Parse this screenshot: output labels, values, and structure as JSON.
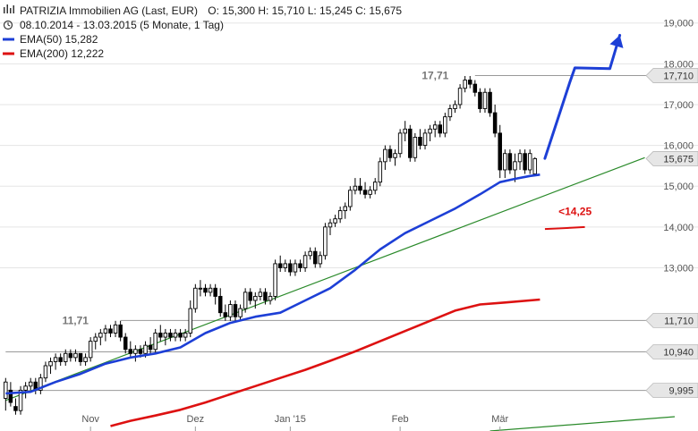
{
  "header": {
    "title": "PATRIZIA Immobilien AG (Last, EUR)",
    "ohlc": "O: 15,300  H: 15,710  L: 15,245  C: 15,675",
    "period": "08.10.2014 - 13.03.2015 (5 Monate, 1 Tag)",
    "ema50_label": "EMA(50)  15,282",
    "ema200_label": "EMA(200)  12,222"
  },
  "colors": {
    "ema50": "#1d3fd6",
    "ema200": "#dd1111",
    "trend": "#2a8a2a",
    "candle": "#000000",
    "tag_bg": "#e6e6e6",
    "grid": "#e5e5e5",
    "hline": "#999999",
    "projection": "#1d3fd6",
    "support_mark": "#dd1111"
  },
  "chart_data": {
    "type": "candlestick",
    "ylim": [
      9.0,
      19.3
    ],
    "y_ticks": [
      {
        "v": 13.0,
        "label": "13,000"
      },
      {
        "v": 14.0,
        "label": "14,000"
      },
      {
        "v": 15.0,
        "label": "15,000"
      },
      {
        "v": 16.0,
        "label": "16,000"
      },
      {
        "v": 17.0,
        "label": "17,000"
      },
      {
        "v": 18.0,
        "label": "18,000"
      },
      {
        "v": 19.0,
        "label": "19,000"
      }
    ],
    "x_ticks": [
      {
        "i": 17,
        "label": "Nov"
      },
      {
        "i": 38,
        "label": "Dez"
      },
      {
        "i": 57,
        "label": "Jan '15"
      },
      {
        "i": 79,
        "label": "Feb"
      },
      {
        "i": 99,
        "label": "Mär"
      }
    ],
    "price_tags": [
      {
        "v": 17.71,
        "label": "17,710"
      },
      {
        "v": 15.675,
        "label": "15,675"
      },
      {
        "v": 11.71,
        "label": "11,710"
      },
      {
        "v": 10.94,
        "label": "10,940"
      },
      {
        "v": 9.995,
        "label": "9,995"
      }
    ],
    "horizontal_lines": [
      {
        "v": 17.71,
        "from_i": 94
      },
      {
        "v": 11.71,
        "from_i": 23
      },
      {
        "v": 10.94,
        "from_i": 0
      },
      {
        "v": 9.995,
        "from_i": 0
      }
    ],
    "annotations": [
      {
        "text": "17,71",
        "i": 88,
        "v": 17.71
      },
      {
        "text": "11,71",
        "i": 16,
        "v": 11.71
      },
      {
        "text": "<14,25",
        "i": 110,
        "v": 14.25
      }
    ],
    "candles": [
      [
        9.8,
        10.3,
        9.5,
        10.2
      ],
      [
        10.0,
        10.2,
        9.6,
        9.7
      ],
      [
        9.6,
        9.8,
        9.4,
        9.5
      ],
      [
        9.5,
        10.1,
        9.4,
        10.0
      ],
      [
        10.0,
        10.2,
        9.8,
        10.1
      ],
      [
        10.1,
        10.3,
        10.0,
        10.2
      ],
      [
        10.2,
        10.3,
        9.9,
        10.0
      ],
      [
        10.0,
        10.4,
        9.9,
        10.3
      ],
      [
        10.3,
        10.7,
        10.2,
        10.6
      ],
      [
        10.6,
        10.8,
        10.4,
        10.7
      ],
      [
        10.7,
        10.9,
        10.5,
        10.8
      ],
      [
        10.8,
        10.9,
        10.6,
        10.7
      ],
      [
        10.7,
        11.0,
        10.6,
        10.9
      ],
      [
        10.9,
        11.0,
        10.7,
        10.8
      ],
      [
        10.8,
        11.0,
        10.7,
        10.9
      ],
      [
        10.9,
        10.9,
        10.6,
        10.7
      ],
      [
        10.7,
        10.9,
        10.6,
        10.8
      ],
      [
        10.8,
        11.3,
        10.7,
        11.2
      ],
      [
        11.2,
        11.4,
        11.0,
        11.3
      ],
      [
        11.3,
        11.5,
        11.1,
        11.4
      ],
      [
        11.4,
        11.6,
        11.2,
        11.5
      ],
      [
        11.5,
        11.6,
        11.3,
        11.4
      ],
      [
        11.4,
        11.7,
        11.3,
        11.6
      ],
      [
        11.6,
        11.7,
        11.2,
        11.3
      ],
      [
        11.3,
        11.4,
        10.9,
        11.0
      ],
      [
        11.0,
        11.2,
        10.8,
        10.9
      ],
      [
        10.9,
        11.1,
        10.7,
        11.0
      ],
      [
        11.0,
        11.1,
        10.8,
        10.9
      ],
      [
        10.9,
        11.2,
        10.8,
        11.1
      ],
      [
        11.1,
        11.3,
        10.9,
        11.0
      ],
      [
        11.0,
        11.5,
        10.9,
        11.4
      ],
      [
        11.4,
        11.6,
        11.2,
        11.3
      ],
      [
        11.3,
        11.5,
        11.1,
        11.4
      ],
      [
        11.4,
        11.5,
        11.2,
        11.3
      ],
      [
        11.3,
        11.5,
        11.2,
        11.4
      ],
      [
        11.4,
        11.5,
        11.2,
        11.3
      ],
      [
        11.3,
        11.5,
        11.2,
        11.4
      ],
      [
        11.4,
        12.2,
        11.3,
        12.0
      ],
      [
        12.0,
        12.6,
        11.9,
        12.5
      ],
      [
        12.5,
        12.7,
        12.3,
        12.5
      ],
      [
        12.5,
        12.6,
        12.3,
        12.4
      ],
      [
        12.4,
        12.6,
        12.3,
        12.5
      ],
      [
        12.5,
        12.6,
        12.1,
        12.3
      ],
      [
        12.3,
        12.5,
        11.8,
        11.9
      ],
      [
        11.9,
        12.1,
        11.7,
        11.8
      ],
      [
        11.8,
        12.2,
        11.7,
        12.1
      ],
      [
        12.1,
        12.2,
        11.7,
        11.8
      ],
      [
        11.8,
        12.1,
        11.7,
        12.0
      ],
      [
        12.0,
        12.5,
        11.9,
        12.4
      ],
      [
        12.4,
        12.5,
        12.1,
        12.2
      ],
      [
        12.2,
        12.4,
        12.0,
        12.3
      ],
      [
        12.3,
        12.5,
        12.2,
        12.4
      ],
      [
        12.4,
        12.5,
        12.1,
        12.2
      ],
      [
        12.2,
        12.4,
        12.1,
        12.3
      ],
      [
        12.3,
        13.2,
        12.2,
        13.1
      ],
      [
        13.1,
        13.3,
        12.9,
        13.0
      ],
      [
        13.0,
        13.2,
        12.9,
        13.1
      ],
      [
        13.1,
        13.2,
        12.8,
        12.9
      ],
      [
        12.9,
        13.2,
        12.8,
        13.1
      ],
      [
        13.1,
        13.2,
        12.9,
        13.0
      ],
      [
        13.0,
        13.4,
        12.9,
        13.3
      ],
      [
        13.3,
        13.5,
        13.2,
        13.4
      ],
      [
        13.4,
        13.5,
        13.0,
        13.1
      ],
      [
        13.1,
        13.4,
        13.0,
        13.3
      ],
      [
        13.3,
        14.1,
        13.2,
        14.0
      ],
      [
        14.0,
        14.2,
        13.8,
        14.1
      ],
      [
        14.1,
        14.3,
        14.0,
        14.2
      ],
      [
        14.2,
        14.5,
        14.1,
        14.4
      ],
      [
        14.4,
        14.6,
        14.2,
        14.5
      ],
      [
        14.5,
        15.0,
        14.4,
        14.9
      ],
      [
        14.9,
        15.2,
        14.8,
        15.0
      ],
      [
        15.0,
        15.2,
        14.8,
        14.9
      ],
      [
        14.9,
        15.1,
        14.7,
        14.8
      ],
      [
        14.8,
        15.0,
        14.7,
        14.9
      ],
      [
        14.9,
        15.2,
        14.8,
        15.1
      ],
      [
        15.1,
        15.7,
        15.0,
        15.6
      ],
      [
        15.6,
        16.0,
        15.4,
        15.9
      ],
      [
        15.9,
        16.0,
        15.6,
        15.7
      ],
      [
        15.7,
        15.9,
        15.5,
        15.8
      ],
      [
        15.8,
        16.4,
        15.7,
        16.3
      ],
      [
        16.3,
        16.6,
        16.1,
        16.4
      ],
      [
        16.4,
        16.5,
        15.6,
        15.7
      ],
      [
        15.7,
        16.3,
        15.6,
        16.2
      ],
      [
        16.2,
        16.4,
        15.9,
        16.0
      ],
      [
        16.0,
        16.4,
        15.9,
        16.3
      ],
      [
        16.3,
        16.5,
        16.1,
        16.4
      ],
      [
        16.4,
        16.6,
        16.2,
        16.5
      ],
      [
        16.5,
        16.6,
        16.2,
        16.3
      ],
      [
        16.3,
        16.8,
        16.2,
        16.7
      ],
      [
        16.7,
        17.0,
        16.6,
        16.9
      ],
      [
        16.9,
        17.1,
        16.8,
        17.0
      ],
      [
        17.0,
        17.5,
        16.9,
        17.4
      ],
      [
        17.4,
        17.7,
        17.3,
        17.6
      ],
      [
        17.6,
        17.7,
        17.4,
        17.5
      ],
      [
        17.5,
        17.6,
        17.2,
        17.3
      ],
      [
        17.3,
        17.4,
        16.8,
        16.9
      ],
      [
        16.9,
        17.4,
        16.8,
        17.3
      ],
      [
        17.3,
        17.4,
        16.7,
        16.8
      ],
      [
        16.8,
        17.0,
        16.2,
        16.3
      ],
      [
        16.3,
        16.5,
        15.2,
        15.4
      ],
      [
        15.4,
        15.9,
        15.2,
        15.8
      ],
      [
        15.8,
        15.9,
        15.3,
        15.4
      ],
      [
        15.4,
        15.8,
        15.1,
        15.6
      ],
      [
        15.6,
        15.9,
        15.4,
        15.8
      ],
      [
        15.8,
        15.9,
        15.3,
        15.4
      ],
      [
        15.4,
        15.9,
        15.3,
        15.8
      ],
      [
        15.3,
        15.71,
        15.245,
        15.675
      ]
    ],
    "ema50": [
      [
        0,
        9.92
      ],
      [
        5,
        9.96
      ],
      [
        10,
        10.2
      ],
      [
        15,
        10.4
      ],
      [
        20,
        10.65
      ],
      [
        25,
        10.8
      ],
      [
        30,
        10.9
      ],
      [
        35,
        11.05
      ],
      [
        40,
        11.4
      ],
      [
        45,
        11.65
      ],
      [
        50,
        11.8
      ],
      [
        55,
        11.9
      ],
      [
        60,
        12.2
      ],
      [
        65,
        12.5
      ],
      [
        70,
        12.95
      ],
      [
        75,
        13.45
      ],
      [
        80,
        13.85
      ],
      [
        85,
        14.15
      ],
      [
        90,
        14.45
      ],
      [
        95,
        14.8
      ],
      [
        99,
        15.1
      ],
      [
        102,
        15.18
      ],
      [
        105,
        15.25
      ],
      [
        107,
        15.282
      ]
    ],
    "ema200": [
      [
        21,
        9.12
      ],
      [
        25,
        9.25
      ],
      [
        30,
        9.38
      ],
      [
        35,
        9.52
      ],
      [
        40,
        9.7
      ],
      [
        45,
        9.9
      ],
      [
        50,
        10.1
      ],
      [
        55,
        10.3
      ],
      [
        60,
        10.5
      ],
      [
        65,
        10.72
      ],
      [
        70,
        10.95
      ],
      [
        75,
        11.2
      ],
      [
        80,
        11.45
      ],
      [
        85,
        11.7
      ],
      [
        90,
        11.95
      ],
      [
        95,
        12.1
      ],
      [
        100,
        12.15
      ],
      [
        107,
        12.222
      ]
    ],
    "trendlines": [
      {
        "name": "upper",
        "points": [
          [
            0,
            9.75
          ],
          [
            128,
            15.7
          ]
        ]
      },
      {
        "name": "lower",
        "points": [
          [
            97,
            9.0
          ],
          [
            134,
            9.35
          ]
        ]
      }
    ],
    "projection": [
      [
        108,
        15.68
      ],
      [
        113,
        17.55
      ],
      [
        114,
        17.9
      ],
      [
        121,
        17.88
      ],
      [
        123,
        18.7
      ]
    ],
    "support_mark": [
      [
        108,
        13.95
      ],
      [
        116,
        14.0
      ]
    ]
  }
}
